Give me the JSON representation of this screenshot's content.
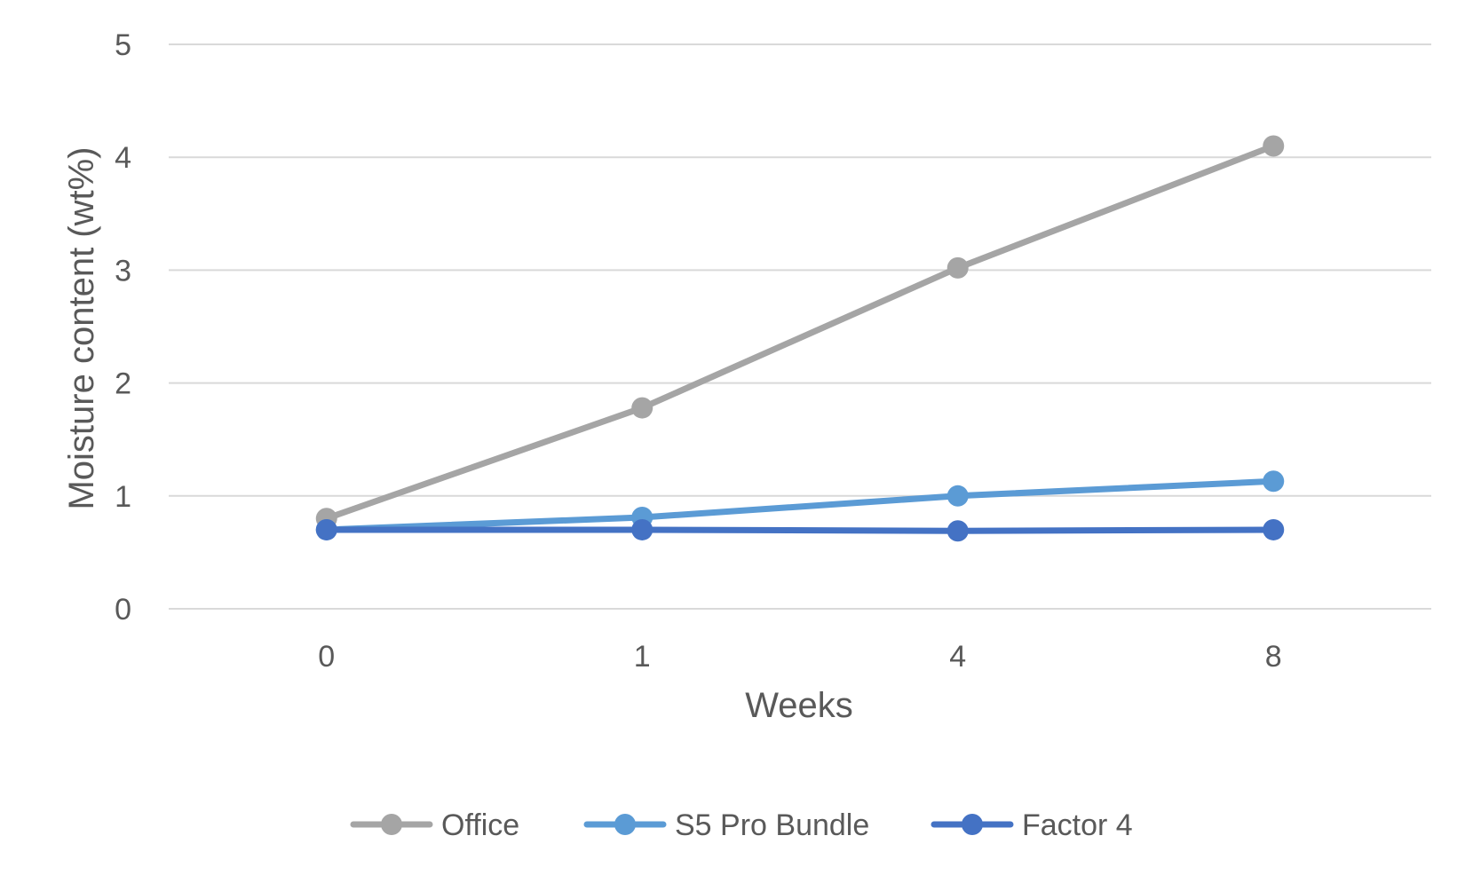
{
  "chart_data": {
    "type": "line",
    "title": "",
    "xlabel": "Weeks",
    "ylabel": "Moisture content (wt%)",
    "categories": [
      "0",
      "1",
      "4",
      "8"
    ],
    "ylim": [
      0,
      5
    ],
    "yticks": [
      "0",
      "1",
      "2",
      "3",
      "4",
      "5"
    ],
    "grid": "horizontal",
    "legend_position": "bottom",
    "series": [
      {
        "name": "Office",
        "color": "#A5A5A5",
        "values": [
          0.8,
          1.78,
          3.02,
          4.1
        ]
      },
      {
        "name": "S5 Pro Bundle",
        "color": "#5B9BD5",
        "values": [
          0.7,
          0.81,
          1.0,
          1.13
        ]
      },
      {
        "name": "Factor 4",
        "color": "#4472C4",
        "values": [
          0.7,
          0.7,
          0.69,
          0.7
        ]
      }
    ]
  }
}
